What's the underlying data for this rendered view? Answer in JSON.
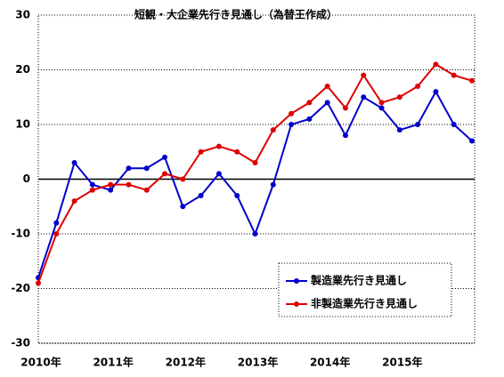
{
  "chart_data": {
    "type": "line",
    "title": "短観・大企業先行き見通し（為替王作成）",
    "categories": [
      "2010年",
      null,
      null,
      null,
      "2011年",
      null,
      null,
      null,
      "2012年",
      null,
      null,
      null,
      "2013年",
      null,
      null,
      null,
      "2014年",
      null,
      null,
      null,
      "2015年",
      null,
      null,
      null,
      null
    ],
    "series": [
      {
        "name": "製造業先行き見通し",
        "color": "#0000cc",
        "values": [
          -18,
          -8,
          3,
          -1,
          -2,
          2,
          2,
          4,
          -5,
          -3,
          1,
          -3,
          -10,
          -1,
          10,
          11,
          14,
          8,
          15,
          13,
          9,
          10,
          16,
          10,
          7
        ]
      },
      {
        "name": "非製造業先行き見通し",
        "color": "#dd0000",
        "values": [
          -19,
          -10,
          -4,
          -2,
          -1,
          -1,
          -2,
          1,
          0,
          5,
          6,
          5,
          3,
          9,
          12,
          14,
          17,
          13,
          19,
          14,
          15,
          17,
          21,
          19,
          18
        ]
      }
    ],
    "ylim": [
      -30,
      30
    ],
    "yticks": [
      -30,
      -20,
      -10,
      0,
      10,
      20,
      30
    ],
    "grid": true
  }
}
